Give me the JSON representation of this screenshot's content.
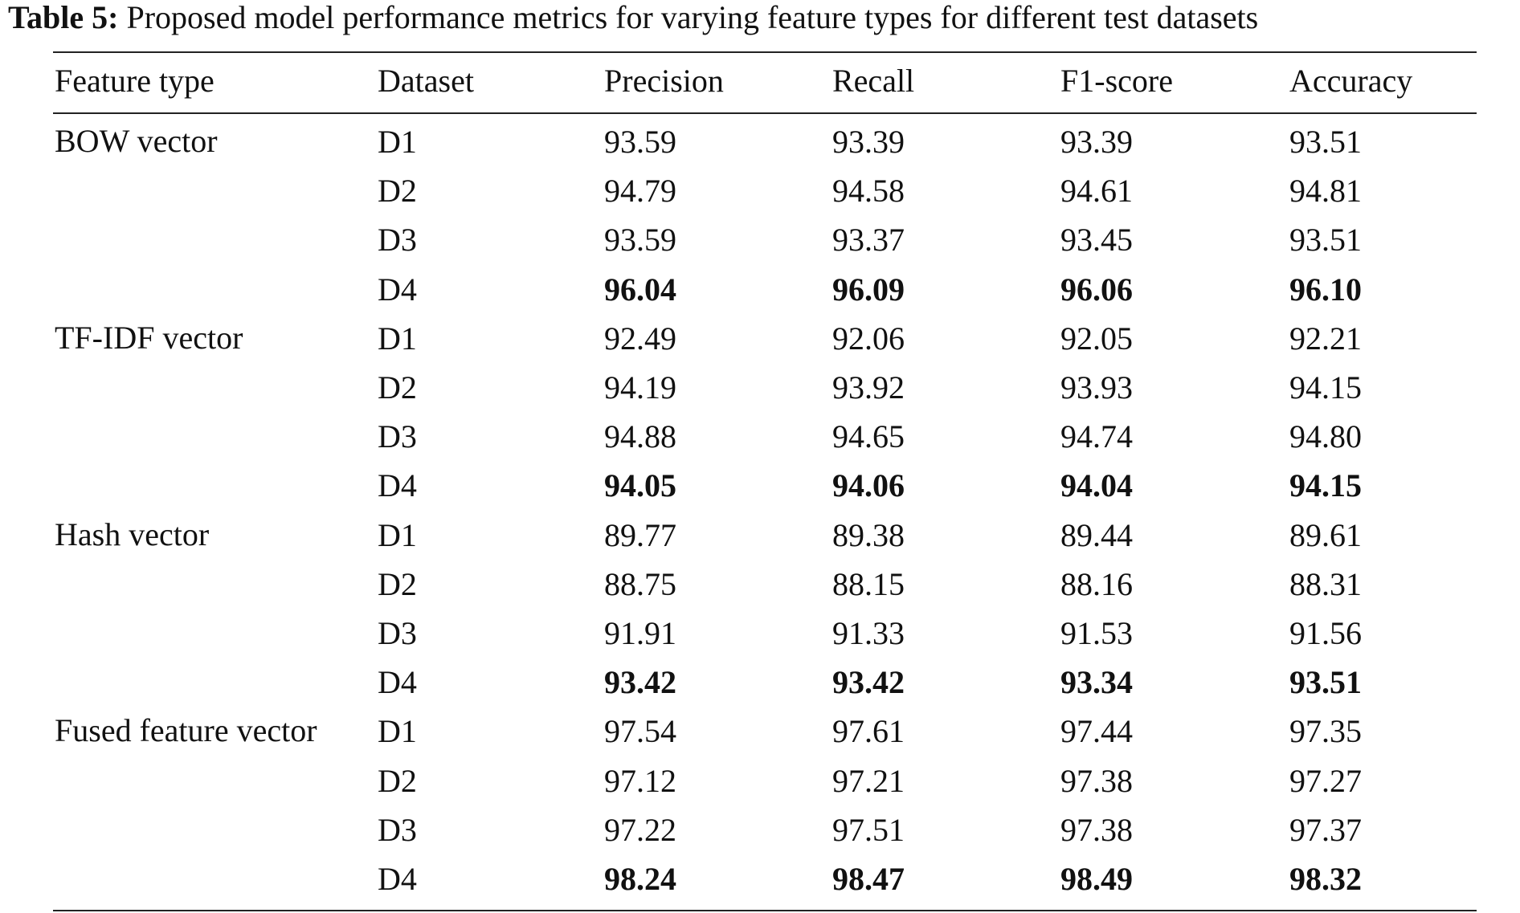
{
  "caption": {
    "label": "Table 5:",
    "text": "Proposed model performance metrics for varying feature types for different test datasets"
  },
  "table": {
    "headers": [
      "Feature type",
      "Dataset",
      "Precision",
      "Recall",
      "F1-score",
      "Accuracy"
    ],
    "groups": [
      {
        "feature_type": "BOW vector",
        "rows": [
          {
            "dataset": "D1",
            "values": [
              "93.59",
              "93.39",
              "93.39",
              "93.51"
            ],
            "bold": false
          },
          {
            "dataset": "D2",
            "values": [
              "94.79",
              "94.58",
              "94.61",
              "94.81"
            ],
            "bold": false
          },
          {
            "dataset": "D3",
            "values": [
              "93.59",
              "93.37",
              "93.45",
              "93.51"
            ],
            "bold": false
          },
          {
            "dataset": "D4",
            "values": [
              "96.04",
              "96.09",
              "96.06",
              "96.10"
            ],
            "bold": true
          }
        ]
      },
      {
        "feature_type": "TF-IDF vector",
        "rows": [
          {
            "dataset": "D1",
            "values": [
              "92.49",
              "92.06",
              "92.05",
              "92.21"
            ],
            "bold": false
          },
          {
            "dataset": "D2",
            "values": [
              "94.19",
              "93.92",
              "93.93",
              "94.15"
            ],
            "bold": false
          },
          {
            "dataset": "D3",
            "values": [
              "94.88",
              "94.65",
              "94.74",
              "94.80"
            ],
            "bold": false
          },
          {
            "dataset": "D4",
            "values": [
              "94.05",
              "94.06",
              "94.04",
              "94.15"
            ],
            "bold": true
          }
        ]
      },
      {
        "feature_type": "Hash vector",
        "rows": [
          {
            "dataset": "D1",
            "values": [
              "89.77",
              "89.38",
              "89.44",
              "89.61"
            ],
            "bold": false
          },
          {
            "dataset": "D2",
            "values": [
              "88.75",
              "88.15",
              "88.16",
              "88.31"
            ],
            "bold": false
          },
          {
            "dataset": "D3",
            "values": [
              "91.91",
              "91.33",
              "91.53",
              "91.56"
            ],
            "bold": false
          },
          {
            "dataset": "D4",
            "values": [
              "93.42",
              "93.42",
              "93.34",
              "93.51"
            ],
            "bold": true
          }
        ]
      },
      {
        "feature_type": "Fused feature vector",
        "rows": [
          {
            "dataset": "D1",
            "values": [
              "97.54",
              "97.61",
              "97.44",
              "97.35"
            ],
            "bold": false
          },
          {
            "dataset": "D2",
            "values": [
              "97.12",
              "97.21",
              "97.38",
              "97.27"
            ],
            "bold": false
          },
          {
            "dataset": "D3",
            "values": [
              "97.22",
              "97.51",
              "97.38",
              "97.37"
            ],
            "bold": false
          },
          {
            "dataset": "D4",
            "values": [
              "98.24",
              "98.47",
              "98.49",
              "98.32"
            ],
            "bold": true
          }
        ]
      }
    ]
  }
}
